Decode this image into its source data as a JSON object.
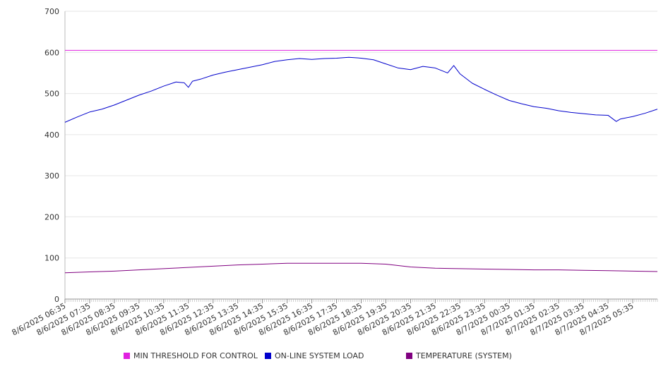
{
  "chart_data": {
    "type": "line",
    "ylim": [
      0,
      700
    ],
    "yticks": [
      0,
      100,
      200,
      300,
      400,
      500,
      600,
      700
    ],
    "grid": "horizontal",
    "legend_position": "bottom",
    "x_start": "8/6/2025 06:35",
    "x_end": "8/7/2025 06:35",
    "x_tick_labels": [
      "8/6/2025 06:35",
      "8/6/2025 07:35",
      "8/6/2025 08:35",
      "8/6/2025 09:35",
      "8/6/2025 10:35",
      "8/6/2025 11:35",
      "8/6/2025 12:35",
      "8/6/2025 13:35",
      "8/6/2025 14:35",
      "8/6/2025 15:35",
      "8/6/2025 16:35",
      "8/6/2025 17:35",
      "8/6/2025 18:35",
      "8/6/2025 19:35",
      "8/6/2025 20:35",
      "8/6/2025 21:35",
      "8/6/2025 22:35",
      "8/6/2025 23:35",
      "8/7/2025 00:35",
      "8/7/2025 01:35",
      "8/7/2025 02:35",
      "8/7/2025 03:35",
      "8/7/2025 04:35",
      "8/7/2025 05:35"
    ],
    "series": [
      {
        "name": "MIN THRESHOLD FOR CONTROL",
        "color": "#e020e0",
        "x": [
          "8/6/2025 06:35",
          "8/7/2025 06:35"
        ],
        "values": [
          605,
          605
        ]
      },
      {
        "name": "ON-LINE SYSTEM LOAD",
        "color": "#0000cc",
        "x": [
          "8/6/2025 06:35",
          "8/6/2025 07:05",
          "8/6/2025 07:35",
          "8/6/2025 08:05",
          "8/6/2025 08:35",
          "8/6/2025 09:05",
          "8/6/2025 09:35",
          "8/6/2025 10:05",
          "8/6/2025 10:35",
          "8/6/2025 11:05",
          "8/6/2025 11:25",
          "8/6/2025 11:35",
          "8/6/2025 11:45",
          "8/6/2025 12:05",
          "8/6/2025 12:35",
          "8/6/2025 13:05",
          "8/6/2025 13:35",
          "8/6/2025 14:05",
          "8/6/2025 14:35",
          "8/6/2025 15:05",
          "8/6/2025 15:35",
          "8/6/2025 16:05",
          "8/6/2025 16:35",
          "8/6/2025 17:05",
          "8/6/2025 17:35",
          "8/6/2025 18:05",
          "8/6/2025 18:35",
          "8/6/2025 19:05",
          "8/6/2025 19:35",
          "8/6/2025 20:05",
          "8/6/2025 20:35",
          "8/6/2025 21:05",
          "8/6/2025 21:35",
          "8/6/2025 22:05",
          "8/6/2025 22:20",
          "8/6/2025 22:35",
          "8/6/2025 23:05",
          "8/6/2025 23:35",
          "8/7/2025 00:05",
          "8/7/2025 00:35",
          "8/7/2025 01:05",
          "8/7/2025 01:35",
          "8/7/2025 02:05",
          "8/7/2025 02:35",
          "8/7/2025 03:05",
          "8/7/2025 03:35",
          "8/7/2025 04:05",
          "8/7/2025 04:35",
          "8/7/2025 04:55",
          "8/7/2025 05:05",
          "8/7/2025 05:35",
          "8/7/2025 06:05",
          "8/7/2025 06:35"
        ],
        "values": [
          430,
          443,
          455,
          462,
          472,
          484,
          496,
          506,
          518,
          528,
          526,
          515,
          530,
          535,
          545,
          552,
          558,
          564,
          570,
          578,
          582,
          585,
          583,
          585,
          586,
          588,
          586,
          582,
          572,
          562,
          558,
          566,
          562,
          550,
          568,
          548,
          525,
          510,
          496,
          483,
          475,
          468,
          464,
          458,
          454,
          451,
          448,
          447,
          432,
          438,
          444,
          452,
          462
        ]
      },
      {
        "name": "TEMPERATURE (SYSTEM)",
        "color": "#800080",
        "x": [
          "8/6/2025 06:35",
          "8/6/2025 07:35",
          "8/6/2025 08:35",
          "8/6/2025 09:35",
          "8/6/2025 10:35",
          "8/6/2025 11:35",
          "8/6/2025 12:35",
          "8/6/2025 13:35",
          "8/6/2025 14:35",
          "8/6/2025 15:35",
          "8/6/2025 16:35",
          "8/6/2025 17:35",
          "8/6/2025 18:35",
          "8/6/2025 19:35",
          "8/6/2025 20:35",
          "8/6/2025 21:35",
          "8/6/2025 22:35",
          "8/6/2025 23:35",
          "8/7/2025 00:35",
          "8/7/2025 01:35",
          "8/7/2025 02:35",
          "8/7/2025 03:35",
          "8/7/2025 04:35",
          "8/7/2025 05:35",
          "8/7/2025 06:35"
        ],
        "values": [
          64,
          66,
          68,
          71,
          74,
          77,
          80,
          83,
          85,
          87,
          87,
          87,
          87,
          85,
          78,
          75,
          74,
          73,
          72,
          71,
          71,
          70,
          69,
          68,
          67
        ]
      }
    ]
  }
}
